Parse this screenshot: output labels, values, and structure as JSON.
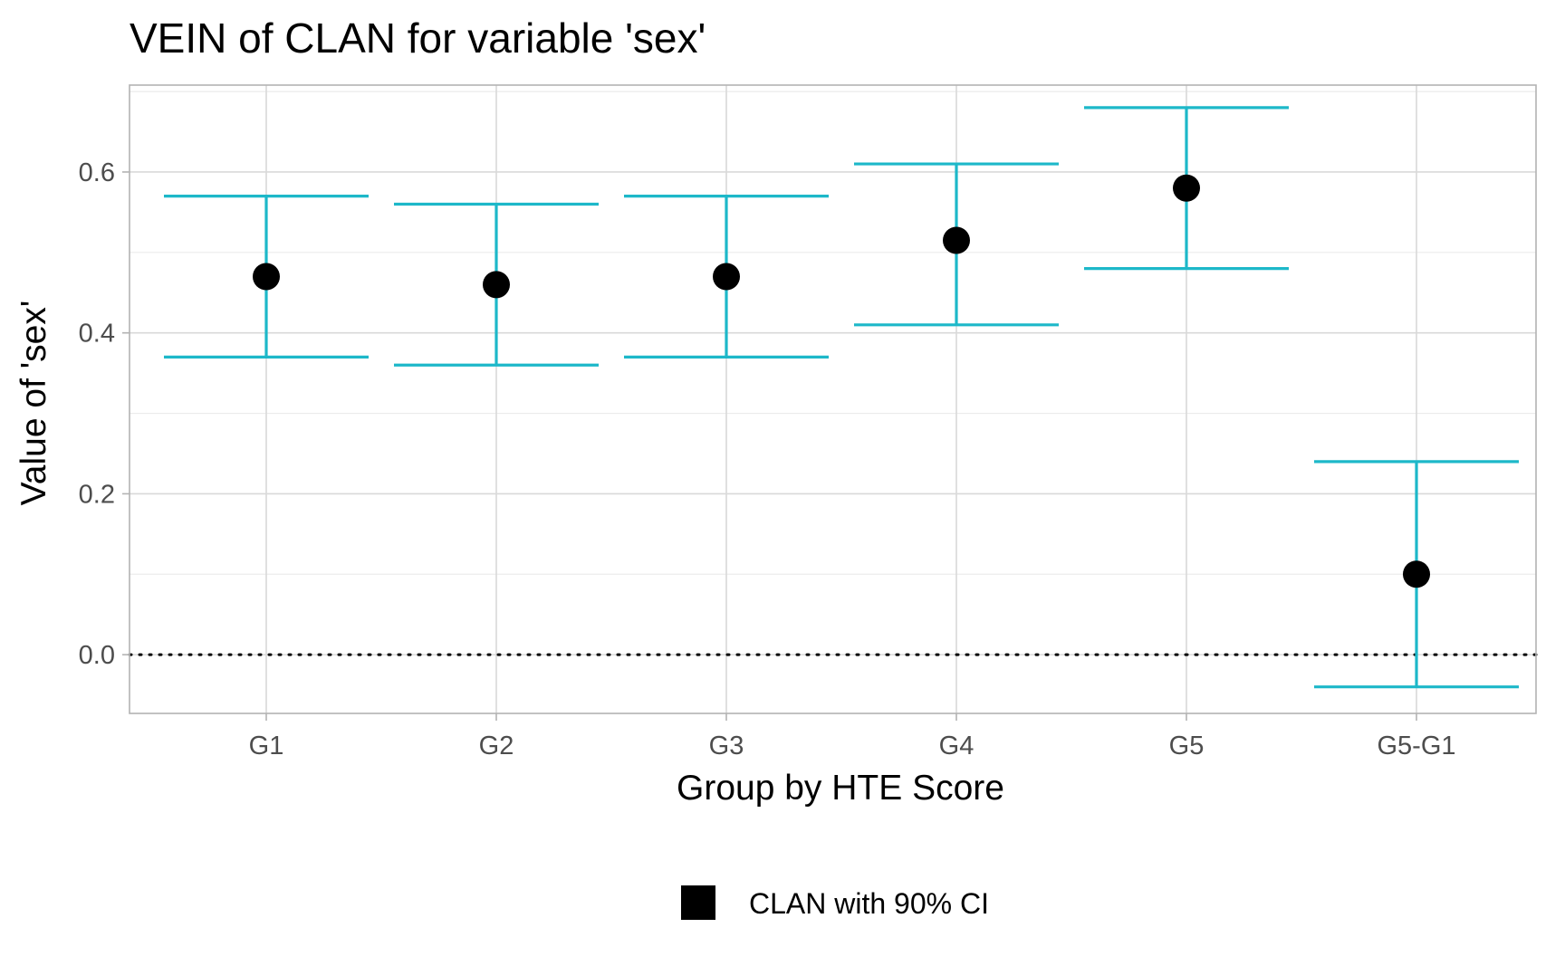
{
  "chart_data": {
    "type": "errorbar",
    "title": "VEIN of CLAN for variable 'sex'",
    "xlabel": "Group by HTE Score",
    "ylabel": "Value of 'sex'",
    "categories": [
      "G1",
      "G2",
      "G3",
      "G4",
      "G5",
      "G5-G1"
    ],
    "series": [
      {
        "name": "CLAN with 90% CI",
        "estimate": [
          0.47,
          0.46,
          0.47,
          0.515,
          0.58,
          0.1
        ],
        "lower": [
          0.37,
          0.36,
          0.37,
          0.41,
          0.48,
          -0.04
        ],
        "upper": [
          0.57,
          0.56,
          0.57,
          0.61,
          0.68,
          0.24
        ]
      }
    ],
    "ylim": [
      -0.073,
      0.708
    ],
    "yticks": [
      0.0,
      0.2,
      0.4,
      0.6
    ],
    "ytick_labels": [
      "0.0",
      "0.2",
      "0.4",
      "0.6"
    ],
    "reference_line": {
      "y": 0,
      "style": "dotted"
    },
    "grid": true,
    "legend_position": "bottom",
    "colors": {
      "errorbar": "#1db8c9",
      "point": "#000000",
      "panel_border": "#b3b3b3"
    }
  }
}
